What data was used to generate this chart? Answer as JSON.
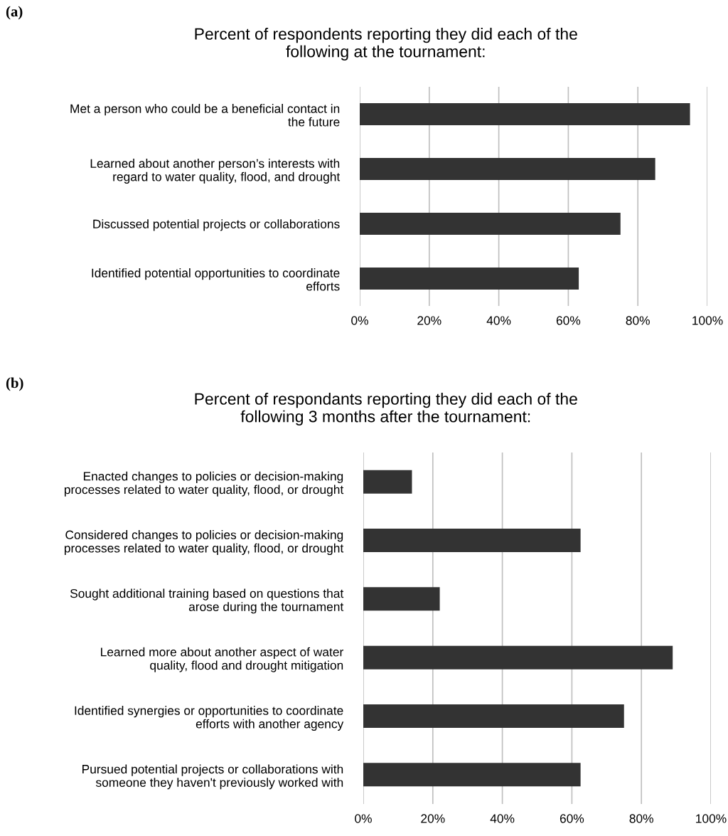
{
  "chart_data": [
    {
      "type": "bar",
      "orientation": "horizontal",
      "title": "Percent of respondents reporting they did each of the\nfollowing at the tournament:",
      "categories": [
        "Met a person who could be a beneficial contact in\nthe future",
        "Learned about another person’s interests with\nregard to water quality, flood, and drought",
        "Discussed potential projects or collaborations",
        "Identified potential opportunities to coordinate\nefforts"
      ],
      "values": [
        95,
        85,
        75,
        63
      ],
      "color": "#333333",
      "xlim": [
        0,
        100
      ],
      "xticks": [
        {
          "value": 0,
          "label": "0%"
        },
        {
          "value": 20,
          "label": "20%"
        },
        {
          "value": 40,
          "label": "40%"
        },
        {
          "value": 60,
          "label": "60%"
        },
        {
          "value": 80,
          "label": "80%"
        },
        {
          "value": 100,
          "label": "100%"
        }
      ],
      "grid": "x",
      "legend": false,
      "annotations": [
        "(a)"
      ]
    },
    {
      "type": "bar",
      "orientation": "horizontal",
      "title": "Percent of respondants reporting they did each of the\nfollowing 3 months after the tournament:",
      "categories": [
        "Enacted changes to policies or decision-making\nprocesses related to water quality, flood, or drought",
        "Considered changes to policies or decision-making\nprocesses related to water quality, flood, or drought",
        "Sought additional training based on questions that\narose during the tournament",
        "Learned more about another aspect of water\nquality, flood and drought mitigation",
        "Identified synergies or opportunities to coordinate\nefforts with another agency",
        "Pursued potential projects or collaborations with\nsomeone they haven't previously worked with"
      ],
      "values": [
        14,
        62.5,
        22,
        89,
        75,
        62.5
      ],
      "color": "#333333",
      "xlim": [
        0,
        100
      ],
      "xticks": [
        {
          "value": 0,
          "label": "0%"
        },
        {
          "value": 20,
          "label": "20%"
        },
        {
          "value": 40,
          "label": "40%"
        },
        {
          "value": 60,
          "label": "60%"
        },
        {
          "value": 80,
          "label": "80%"
        },
        {
          "value": 100,
          "label": "100%"
        }
      ],
      "grid": "x",
      "legend": false,
      "annotations": [
        "(b)"
      ]
    }
  ]
}
